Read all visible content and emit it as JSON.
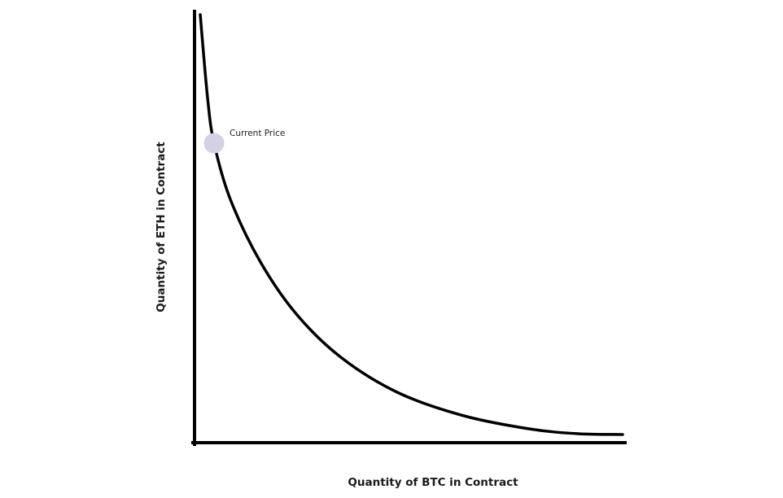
{
  "diagram": {
    "y_axis_label": "Quantity of ETH in Contract",
    "x_axis_label": "Quantity of BTC in Contract",
    "marker_label": "Current Price",
    "curve_color": "#000000",
    "axis_color": "#000000",
    "marker_color": "#d3d1e3",
    "curve_shape": "hyperbolic constant-product curve x*y=k, descending from top-left to bottom-right"
  }
}
